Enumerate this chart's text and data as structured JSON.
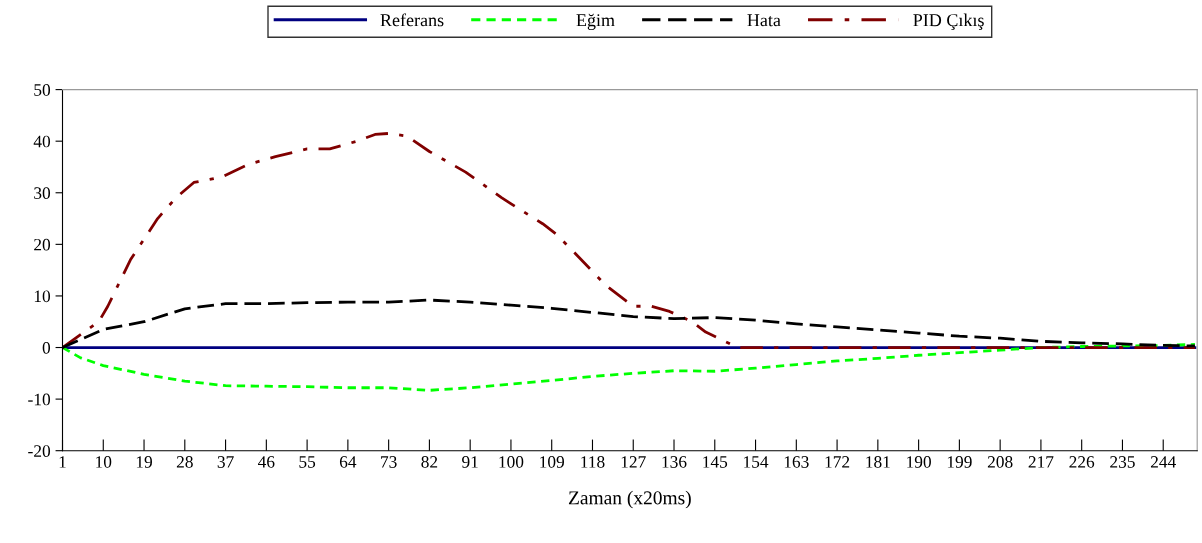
{
  "chart_data": {
    "type": "line",
    "xlabel": "Zaman (x20ms)",
    "xlim": [
      1,
      251.5
    ],
    "xticks": [
      1,
      10,
      19,
      28,
      37,
      46,
      55,
      64,
      73,
      82,
      91,
      100,
      109,
      118,
      127,
      136,
      145,
      154,
      163,
      172,
      181,
      190,
      199,
      208,
      217,
      226,
      235,
      244
    ],
    "ylim": [
      -20,
      50
    ],
    "yticks": [
      -20,
      -10,
      0,
      10,
      20,
      30,
      40,
      50
    ],
    "grid": false,
    "legend": "top",
    "marker": "none",
    "series": [
      {
        "name": "Referans",
        "color": "#000080",
        "line_style": "solid",
        "x": [
          1,
          251
        ],
        "values": [
          0,
          0
        ]
      },
      {
        "name": "Eğim",
        "color": "#00ff00",
        "line_style": "dotted",
        "x": [
          1,
          5,
          10,
          19,
          28,
          37,
          46,
          55,
          64,
          73,
          82,
          91,
          100,
          109,
          118,
          127,
          136,
          145,
          154,
          163,
          172,
          181,
          190,
          199,
          208,
          217,
          226,
          235,
          244,
          251
        ],
        "values": [
          0,
          -2,
          -3.5,
          -5.2,
          -6.5,
          -7.4,
          -7.5,
          -7.6,
          -7.8,
          -7.8,
          -8.3,
          -7.8,
          -7.1,
          -6.4,
          -5.6,
          -5,
          -4.5,
          -4.6,
          -4,
          -3.3,
          -2.6,
          -2.1,
          -1.5,
          -1,
          -0.5,
          0,
          0.2,
          0.3,
          0.4,
          0.6
        ]
      },
      {
        "name": "Hata",
        "color": "#000000",
        "line_style": "dashed",
        "x": [
          1,
          10,
          19,
          28,
          37,
          46,
          55,
          64,
          73,
          82,
          91,
          100,
          109,
          118,
          127,
          136,
          145,
          154,
          163,
          172,
          181,
          190,
          199,
          208,
          217,
          226,
          235,
          244,
          251
        ],
        "values": [
          0,
          3.5,
          5,
          7.5,
          8.5,
          8.5,
          8.7,
          8.8,
          8.8,
          9.2,
          8.8,
          8.2,
          7.6,
          6.8,
          6,
          5.6,
          5.8,
          5.3,
          4.6,
          4,
          3.4,
          2.8,
          2.2,
          1.8,
          1.2,
          0.9,
          0.7,
          0.4,
          0.3
        ]
      },
      {
        "name": "PID Çıkış",
        "color": "#800000",
        "line_style": "dashdot",
        "x": [
          1,
          9,
          11,
          16,
          22,
          26,
          30,
          36,
          42,
          48,
          55,
          60,
          66,
          70,
          73,
          77,
          82,
          90,
          98,
          107,
          110,
          115,
          121,
          127,
          131,
          135,
          140,
          143,
          150,
          251
        ],
        "values": [
          0,
          5,
          8,
          17,
          25,
          29,
          32,
          33,
          35.5,
          37,
          38.5,
          38.5,
          40,
          41.3,
          41.5,
          41,
          38,
          34,
          29,
          24,
          22,
          17.5,
          12,
          8,
          8,
          7,
          5,
          3,
          0,
          0
        ]
      }
    ]
  }
}
